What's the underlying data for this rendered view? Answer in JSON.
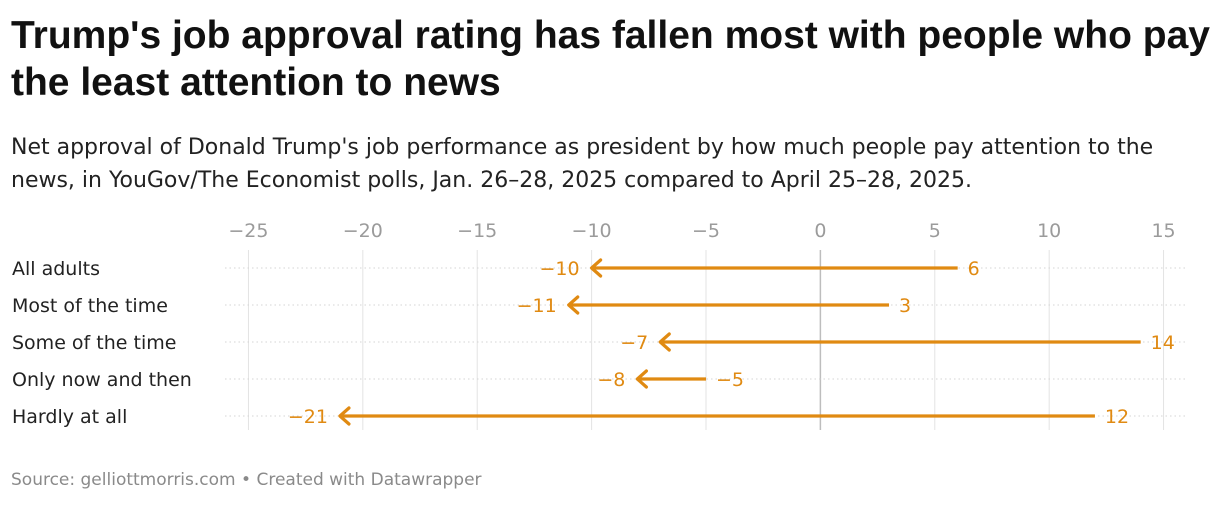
{
  "header": {
    "title": "Trump's job approval rating has fallen most with people who pay the least attention to news",
    "subtitle": "Net approval of Donald Trump's job performance as president by how much people pay attention to the news, in YouGov/The Economist polls, Jan. 26–28, 2025 compared to April 25–28, 2025."
  },
  "footer": {
    "source": "Source: gelliottmorris.com",
    "separator": "•",
    "credit": "Created with Datawrapper"
  },
  "chart_data": {
    "type": "arrow",
    "x_ticks": [
      -25,
      -20,
      -15,
      -10,
      -5,
      0,
      5,
      10,
      15
    ],
    "x_tick_labels": [
      "−25",
      "−20",
      "−15",
      "−10",
      "−5",
      "0",
      "5",
      "10",
      "15"
    ],
    "xlim": [
      -25.5,
      15.5
    ],
    "arrow_color": "#e08a12",
    "rows": [
      {
        "label": "All adults",
        "start": 6,
        "end": -10,
        "start_label": "6",
        "end_label": "−10"
      },
      {
        "label": "Most of the time",
        "start": 3,
        "end": -11,
        "start_label": "3",
        "end_label": "−11"
      },
      {
        "label": "Some of the time",
        "start": 14,
        "end": -7,
        "start_label": "14",
        "end_label": "−7"
      },
      {
        "label": "Only now and then",
        "start": -5,
        "end": -8,
        "start_label": "−5",
        "end_label": "−8"
      },
      {
        "label": "Hardly at all",
        "start": 12,
        "end": -21,
        "start_label": "12",
        "end_label": "−21"
      }
    ]
  }
}
